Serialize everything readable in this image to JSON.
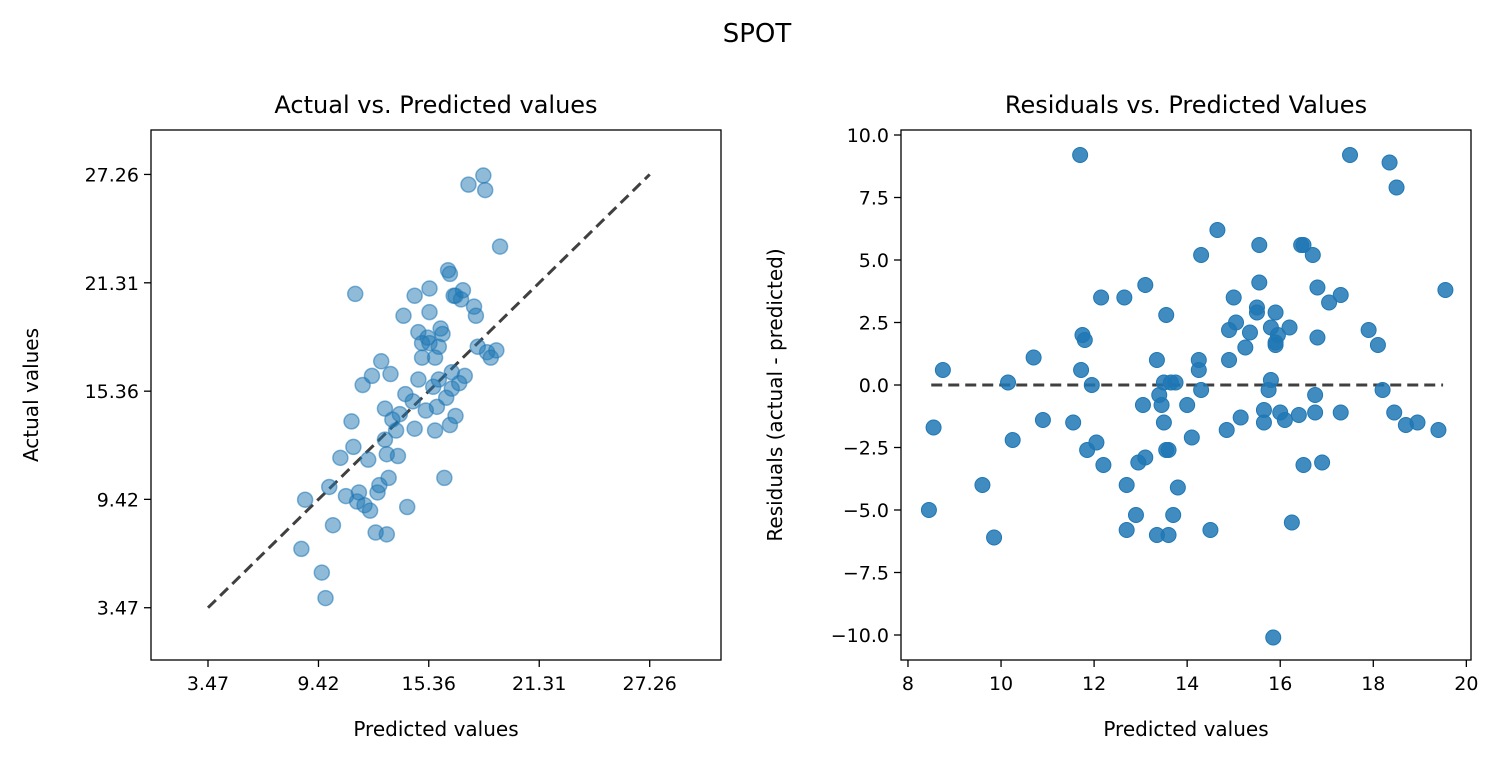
{
  "suptitle": "SPOT",
  "chart_data": [
    {
      "type": "scatter",
      "title": "Actual vs. Predicted values",
      "xlabel": "Predicted values",
      "ylabel": "Actual values",
      "xlim": [
        0.4,
        31.1
      ],
      "ylim": [
        0.6,
        29.7
      ],
      "xticks": [
        3.47,
        9.42,
        15.36,
        21.31,
        27.26
      ],
      "xtick_labels": [
        "3.47",
        "9.42",
        "15.36",
        "21.31",
        "27.26"
      ],
      "yticks": [
        3.47,
        9.42,
        15.36,
        21.31,
        27.26
      ],
      "ytick_labels": [
        "3.47",
        "9.42",
        "15.36",
        "21.31",
        "27.26"
      ],
      "reference_line": {
        "from": [
          3.47,
          3.47
        ],
        "to": [
          27.26,
          27.26
        ],
        "style": "dashed",
        "color": "#404040"
      },
      "marker_color": "#1f77b4",
      "points": [
        [
          8.5,
          6.7
        ],
        [
          8.7,
          9.4
        ],
        [
          9.6,
          5.4
        ],
        [
          9.8,
          4.0
        ],
        [
          10.0,
          10.1
        ],
        [
          10.2,
          8.0
        ],
        [
          10.6,
          11.7
        ],
        [
          10.9,
          9.6
        ],
        [
          11.2,
          13.7
        ],
        [
          11.3,
          12.3
        ],
        [
          11.4,
          20.7
        ],
        [
          11.5,
          9.3
        ],
        [
          11.6,
          9.8
        ],
        [
          11.8,
          15.7
        ],
        [
          11.9,
          9.1
        ],
        [
          12.1,
          11.6
        ],
        [
          12.2,
          8.8
        ],
        [
          12.3,
          16.2
        ],
        [
          12.5,
          7.6
        ],
        [
          12.6,
          9.8
        ],
        [
          12.7,
          10.2
        ],
        [
          12.8,
          17.0
        ],
        [
          13.0,
          14.4
        ],
        [
          13.0,
          12.7
        ],
        [
          13.1,
          11.9
        ],
        [
          13.1,
          7.5
        ],
        [
          13.2,
          10.6
        ],
        [
          13.3,
          16.3
        ],
        [
          13.4,
          13.8
        ],
        [
          13.6,
          13.2
        ],
        [
          13.7,
          11.8
        ],
        [
          13.8,
          14.1
        ],
        [
          14.0,
          19.5
        ],
        [
          14.1,
          15.2
        ],
        [
          14.2,
          9.0
        ],
        [
          14.5,
          14.8
        ],
        [
          14.6,
          20.6
        ],
        [
          14.6,
          13.3
        ],
        [
          14.8,
          16.0
        ],
        [
          14.8,
          18.6
        ],
        [
          15.0,
          17.2
        ],
        [
          15.0,
          18.0
        ],
        [
          15.2,
          14.3
        ],
        [
          15.3,
          18.3
        ],
        [
          15.4,
          18.0
        ],
        [
          15.4,
          19.7
        ],
        [
          15.4,
          21.0
        ],
        [
          15.6,
          15.6
        ],
        [
          15.7,
          17.2
        ],
        [
          15.7,
          13.2
        ],
        [
          15.8,
          14.5
        ],
        [
          15.9,
          17.8
        ],
        [
          15.9,
          16.0
        ],
        [
          16.0,
          18.8
        ],
        [
          16.1,
          18.5
        ],
        [
          16.2,
          10.6
        ],
        [
          16.3,
          15.0
        ],
        [
          16.4,
          22.0
        ],
        [
          16.5,
          21.8
        ],
        [
          16.5,
          13.5
        ],
        [
          16.6,
          16.4
        ],
        [
          16.6,
          15.5
        ],
        [
          16.7,
          20.6
        ],
        [
          16.8,
          20.6
        ],
        [
          16.8,
          14.0
        ],
        [
          17.0,
          15.8
        ],
        [
          17.1,
          20.4
        ],
        [
          17.2,
          20.9
        ],
        [
          17.3,
          16.2
        ],
        [
          17.5,
          26.7
        ],
        [
          17.8,
          20.0
        ],
        [
          17.9,
          19.5
        ],
        [
          18.0,
          17.8
        ],
        [
          18.3,
          27.2
        ],
        [
          18.4,
          26.4
        ],
        [
          18.5,
          17.5
        ],
        [
          18.7,
          17.2
        ],
        [
          19.0,
          17.6
        ],
        [
          19.2,
          23.3
        ]
      ]
    },
    {
      "type": "scatter",
      "title": "Residuals vs. Predicted Values",
      "xlabel": "Predicted values",
      "ylabel": "Residuals (actual - predicted)",
      "xlim": [
        7.85,
        20.1
      ],
      "ylim": [
        -11.0,
        10.2
      ],
      "xticks": [
        8,
        10,
        12,
        14,
        16,
        18,
        20
      ],
      "xtick_labels": [
        "8",
        "10",
        "12",
        "14",
        "16",
        "18",
        "20"
      ],
      "yticks": [
        10.0,
        7.5,
        5.0,
        2.5,
        0.0,
        -2.5,
        -5.0,
        -7.5,
        -10.0
      ],
      "ytick_labels": [
        "10.0",
        "7.5",
        "5.0",
        "2.5",
        "0.0",
        "−2.5",
        "−5.0",
        "−7.5",
        "−10.0"
      ],
      "reference_line": {
        "from": [
          8.5,
          0
        ],
        "to": [
          19.5,
          0
        ],
        "style": "dashed",
        "color": "#404040"
      },
      "marker_color": "#1f77b4",
      "points": [
        [
          8.45,
          -5.0
        ],
        [
          8.55,
          -1.7
        ],
        [
          8.75,
          0.6
        ],
        [
          9.6,
          -4.0
        ],
        [
          9.85,
          -6.1
        ],
        [
          10.15,
          0.1
        ],
        [
          10.25,
          -2.2
        ],
        [
          10.7,
          1.1
        ],
        [
          10.9,
          -1.4
        ],
        [
          11.55,
          -1.5
        ],
        [
          11.7,
          9.2
        ],
        [
          11.72,
          0.6
        ],
        [
          11.75,
          2.0
        ],
        [
          11.8,
          1.8
        ],
        [
          11.85,
          -2.6
        ],
        [
          11.95,
          0.0
        ],
        [
          12.05,
          -2.3
        ],
        [
          12.15,
          3.5
        ],
        [
          12.2,
          -3.2
        ],
        [
          12.65,
          3.5
        ],
        [
          12.7,
          -4.0
        ],
        [
          12.7,
          -5.8
        ],
        [
          12.9,
          -5.2
        ],
        [
          12.95,
          -3.1
        ],
        [
          13.05,
          -0.8
        ],
        [
          13.1,
          -2.9
        ],
        [
          13.1,
          4.0
        ],
        [
          13.35,
          -6.0
        ],
        [
          13.35,
          1.0
        ],
        [
          13.4,
          -0.4
        ],
        [
          13.45,
          -0.8
        ],
        [
          13.5,
          -1.5
        ],
        [
          13.5,
          0.1
        ],
        [
          13.55,
          -2.6
        ],
        [
          13.55,
          2.8
        ],
        [
          13.6,
          -2.6
        ],
        [
          13.6,
          -6.0
        ],
        [
          13.65,
          0.1
        ],
        [
          13.7,
          -5.2
        ],
        [
          13.75,
          0.1
        ],
        [
          13.8,
          -4.1
        ],
        [
          14.0,
          -0.8
        ],
        [
          14.1,
          -2.1
        ],
        [
          14.25,
          1.0
        ],
        [
          14.25,
          0.6
        ],
        [
          14.3,
          -0.2
        ],
        [
          14.3,
          5.2
        ],
        [
          14.5,
          -5.8
        ],
        [
          14.65,
          6.2
        ],
        [
          14.85,
          -1.8
        ],
        [
          14.9,
          1.0
        ],
        [
          14.9,
          2.2
        ],
        [
          15.0,
          3.5
        ],
        [
          15.05,
          2.5
        ],
        [
          15.15,
          -1.3
        ],
        [
          15.25,
          1.5
        ],
        [
          15.35,
          2.1
        ],
        [
          15.5,
          2.9
        ],
        [
          15.5,
          3.1
        ],
        [
          15.55,
          5.6
        ],
        [
          15.55,
          4.1
        ],
        [
          15.65,
          -1.0
        ],
        [
          15.65,
          -1.5
        ],
        [
          15.75,
          -0.2
        ],
        [
          15.8,
          0.2
        ],
        [
          15.8,
          2.3
        ],
        [
          15.85,
          -10.1
        ],
        [
          15.9,
          1.7
        ],
        [
          15.9,
          1.6
        ],
        [
          15.9,
          2.9
        ],
        [
          15.95,
          2.0
        ],
        [
          16.0,
          -1.1
        ],
        [
          16.1,
          -1.4
        ],
        [
          16.2,
          2.3
        ],
        [
          16.25,
          -5.5
        ],
        [
          16.4,
          -1.2
        ],
        [
          16.45,
          5.6
        ],
        [
          16.5,
          -3.2
        ],
        [
          16.5,
          5.6
        ],
        [
          16.7,
          5.2
        ],
        [
          16.75,
          -1.1
        ],
        [
          16.75,
          -0.4
        ],
        [
          16.8,
          3.9
        ],
        [
          16.8,
          1.9
        ],
        [
          16.9,
          -3.1
        ],
        [
          17.05,
          3.3
        ],
        [
          17.3,
          3.6
        ],
        [
          17.3,
          -1.1
        ],
        [
          17.5,
          9.2
        ],
        [
          17.9,
          2.2
        ],
        [
          18.1,
          1.6
        ],
        [
          18.2,
          -0.2
        ],
        [
          18.35,
          8.9
        ],
        [
          18.45,
          -1.1
        ],
        [
          18.5,
          7.9
        ],
        [
          18.7,
          -1.6
        ],
        [
          18.95,
          -1.5
        ],
        [
          19.4,
          -1.8
        ],
        [
          19.55,
          3.8
        ]
      ]
    }
  ]
}
